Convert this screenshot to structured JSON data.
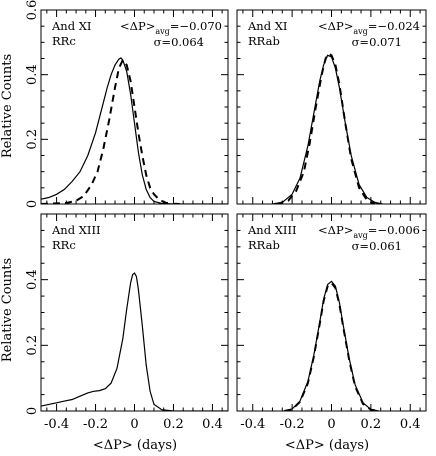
{
  "figure": {
    "xlabel": "<ΔP> (days)",
    "ylabel": "Relative Counts"
  },
  "chart_data": [
    {
      "type": "line",
      "panel": "top-left",
      "labels": {
        "line1": "And XI",
        "line2": "RRc"
      },
      "avg_text": "<ΔP>avg=−0.070",
      "avg_value": -0.07,
      "sigma_text": "σ=0.064",
      "sigma_value": 0.064,
      "xlim": [
        -0.48,
        0.48
      ],
      "ylim": [
        0,
        0.6
      ],
      "xticks": [
        -0.4,
        -0.2,
        0,
        0.2,
        0.4
      ],
      "yticks": [
        0,
        0.2,
        0.4,
        0.6
      ],
      "ytick_labels": [
        "0",
        "0.2",
        "0.4",
        "0.6"
      ],
      "series": [
        {
          "style": "solid",
          "x": [
            -0.48,
            -0.44,
            -0.4,
            -0.36,
            -0.32,
            -0.28,
            -0.24,
            -0.2,
            -0.17,
            -0.14,
            -0.12,
            -0.1,
            -0.08,
            -0.07,
            -0.06,
            -0.04,
            -0.02,
            0.0,
            0.02,
            0.04,
            0.06,
            0.08,
            0.1,
            0.14,
            0.2,
            0.3,
            0.48
          ],
          "y": [
            0.015,
            0.02,
            0.03,
            0.045,
            0.07,
            0.1,
            0.15,
            0.22,
            0.29,
            0.36,
            0.4,
            0.43,
            0.448,
            0.452,
            0.445,
            0.41,
            0.34,
            0.25,
            0.16,
            0.09,
            0.045,
            0.02,
            0.008,
            0.002,
            0,
            0,
            0
          ]
        },
        {
          "style": "dashed",
          "x": [
            -0.48,
            -0.35,
            -0.3,
            -0.26,
            -0.22,
            -0.19,
            -0.16,
            -0.13,
            -0.1,
            -0.08,
            -0.06,
            -0.04,
            -0.02,
            0.0,
            0.02,
            0.04,
            0.06,
            0.08,
            0.1,
            0.13,
            0.16,
            0.2,
            0.24
          ],
          "y": [
            0,
            0.003,
            0.01,
            0.025,
            0.06,
            0.1,
            0.17,
            0.26,
            0.36,
            0.42,
            0.445,
            0.43,
            0.38,
            0.3,
            0.22,
            0.15,
            0.09,
            0.05,
            0.03,
            0.012,
            0.004,
            0.001,
            0
          ]
        }
      ]
    },
    {
      "type": "line",
      "panel": "top-right",
      "labels": {
        "line1": "And XI",
        "line2": "RRab"
      },
      "avg_text": "<ΔP>avg=−0.024",
      "avg_value": -0.024,
      "sigma_text": "σ=0.071",
      "sigma_value": 0.071,
      "xlim": [
        -0.48,
        0.48
      ],
      "ylim": [
        0,
        0.6
      ],
      "xticks": [
        -0.4,
        -0.2,
        0,
        0.2,
        0.4
      ],
      "yticks": [
        0,
        0.2,
        0.4,
        0.6
      ],
      "ytick_labels": [
        "",
        "",
        "",
        ""
      ],
      "series": [
        {
          "style": "solid",
          "x": [
            -0.3,
            -0.25,
            -0.2,
            -0.16,
            -0.12,
            -0.09,
            -0.06,
            -0.04,
            -0.02,
            0.0,
            0.02,
            0.04,
            0.07,
            0.1,
            0.14,
            0.18,
            0.22,
            0.26
          ],
          "y": [
            0,
            0.005,
            0.03,
            0.08,
            0.18,
            0.28,
            0.38,
            0.43,
            0.46,
            0.455,
            0.42,
            0.36,
            0.25,
            0.15,
            0.06,
            0.02,
            0.005,
            0
          ]
        },
        {
          "style": "dashed",
          "x": [
            -0.28,
            -0.22,
            -0.18,
            -0.14,
            -0.11,
            -0.08,
            -0.05,
            -0.03,
            -0.015,
            0.0,
            0.02,
            0.04,
            0.07,
            0.1,
            0.14,
            0.18,
            0.22
          ],
          "y": [
            0,
            0.01,
            0.04,
            0.1,
            0.19,
            0.3,
            0.4,
            0.45,
            0.465,
            0.46,
            0.43,
            0.37,
            0.25,
            0.14,
            0.05,
            0.012,
            0
          ]
        }
      ]
    },
    {
      "type": "line",
      "panel": "bottom-left",
      "labels": {
        "line1": "And XIII",
        "line2": "RRc"
      },
      "avg_text": "",
      "sigma_text": "",
      "xlim": [
        -0.48,
        0.48
      ],
      "ylim": [
        0,
        0.6
      ],
      "xticks": [
        -0.4,
        -0.2,
        0,
        0.2,
        0.4
      ],
      "xtick_labels": [
        "-0.4",
        "-0.2",
        "0",
        "0.2",
        "0.4"
      ],
      "yticks": [
        0,
        0.2,
        0.4,
        0.6
      ],
      "ytick_labels": [
        "0",
        "0.2",
        "0.4",
        ""
      ],
      "series": [
        {
          "style": "solid",
          "x": [
            -0.48,
            -0.44,
            -0.4,
            -0.36,
            -0.32,
            -0.28,
            -0.24,
            -0.21,
            -0.18,
            -0.15,
            -0.12,
            -0.09,
            -0.06,
            -0.04,
            -0.02,
            -0.01,
            0.0,
            0.01,
            0.02,
            0.04,
            0.06,
            0.08,
            0.1,
            0.14,
            0.2,
            0.48
          ],
          "y": [
            0.015,
            0.02,
            0.025,
            0.03,
            0.035,
            0.045,
            0.055,
            0.06,
            0.062,
            0.068,
            0.085,
            0.13,
            0.22,
            0.31,
            0.39,
            0.415,
            0.42,
            0.41,
            0.37,
            0.26,
            0.14,
            0.06,
            0.02,
            0.004,
            0,
            0
          ]
        }
      ]
    },
    {
      "type": "line",
      "panel": "bottom-right",
      "labels": {
        "line1": "And XIII",
        "line2": "RRab"
      },
      "avg_text": "<ΔP>avg=−0.006",
      "avg_value": -0.006,
      "sigma_text": "σ=0.061",
      "sigma_value": 0.061,
      "xlim": [
        -0.48,
        0.48
      ],
      "ylim": [
        0,
        0.6
      ],
      "xticks": [
        -0.4,
        -0.2,
        0,
        0.2,
        0.4
      ],
      "xtick_labels": [
        "-0.4",
        "-0.2",
        "0",
        "0.2",
        "0.4"
      ],
      "yticks": [
        0,
        0.2,
        0.4,
        0.6
      ],
      "ytick_labels": [
        "",
        "",
        "",
        ""
      ],
      "series": [
        {
          "style": "solid",
          "x": [
            -0.24,
            -0.2,
            -0.16,
            -0.12,
            -0.09,
            -0.06,
            -0.04,
            -0.02,
            0.0,
            0.02,
            0.04,
            0.06,
            0.09,
            0.12,
            0.16,
            0.2,
            0.24
          ],
          "y": [
            0,
            0.006,
            0.03,
            0.09,
            0.17,
            0.27,
            0.34,
            0.385,
            0.395,
            0.38,
            0.33,
            0.26,
            0.16,
            0.08,
            0.025,
            0.005,
            0
          ]
        },
        {
          "style": "dashed",
          "x": [
            -0.24,
            -0.2,
            -0.16,
            -0.12,
            -0.09,
            -0.06,
            -0.04,
            -0.02,
            0.0,
            0.02,
            0.04,
            0.06,
            0.09,
            0.12,
            0.16,
            0.2,
            0.24
          ],
          "y": [
            0,
            0.005,
            0.028,
            0.085,
            0.165,
            0.265,
            0.335,
            0.38,
            0.39,
            0.375,
            0.325,
            0.255,
            0.155,
            0.075,
            0.022,
            0.004,
            0
          ]
        }
      ]
    }
  ]
}
